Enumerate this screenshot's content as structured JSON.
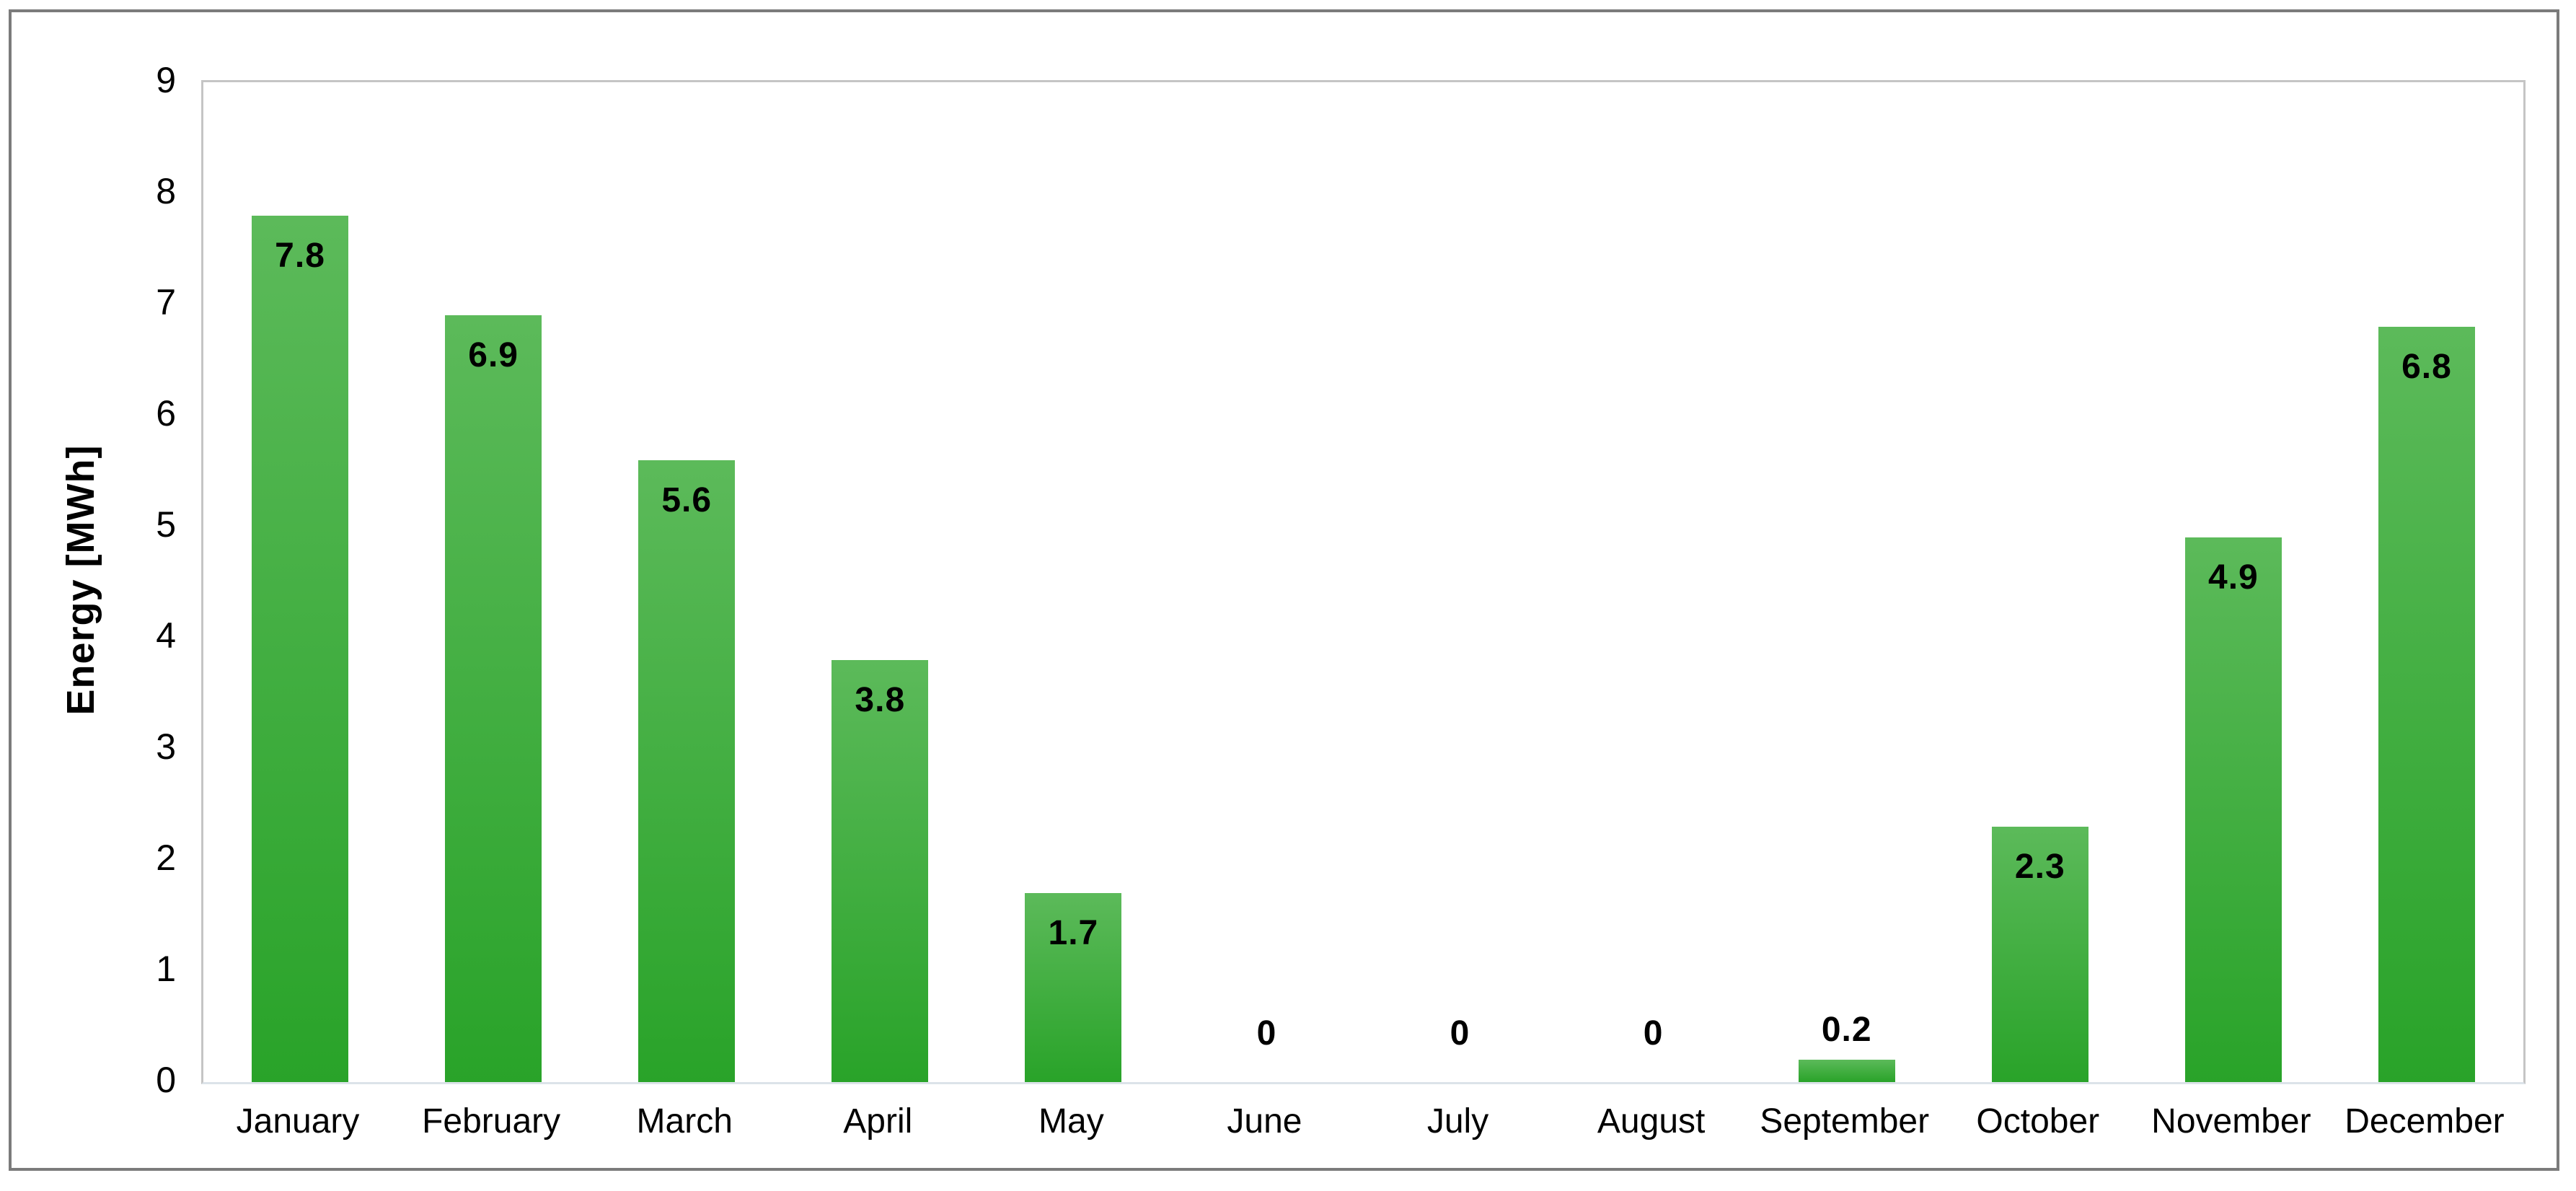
{
  "chart_data": {
    "type": "bar",
    "title": "",
    "categories": [
      "January",
      "February",
      "March",
      "April",
      "May",
      "June",
      "July",
      "August",
      "September",
      "October",
      "November",
      "December"
    ],
    "values": [
      7.8,
      6.9,
      5.6,
      3.8,
      1.7,
      0,
      0,
      0,
      0.2,
      2.3,
      4.9,
      6.8
    ],
    "data_labels": [
      "7.8",
      "6.9",
      "5.6",
      "3.8",
      "1.7",
      "0",
      "0",
      "0",
      "0.2",
      "2.3",
      "4.9",
      "6.8"
    ],
    "xlabel": "",
    "ylabel": "Energy [MWh]",
    "ylim": [
      0,
      9
    ],
    "yticks": [
      0,
      1,
      2,
      3,
      4,
      5,
      6,
      7,
      8,
      9
    ],
    "grid": false,
    "legend": false,
    "bar_gap_ratio": 0.5,
    "data_label_position": "inside-end"
  },
  "style_colors": {
    "bar_gradient_top": "#5CBA5A",
    "bar_gradient_bottom": "#29A329",
    "outer_frame_border": "#7B7B7B",
    "plot_border": "#C5C5C5",
    "axis_baseline": "#DCE3E9",
    "text": "#000000",
    "background": "#FFFFFF"
  }
}
